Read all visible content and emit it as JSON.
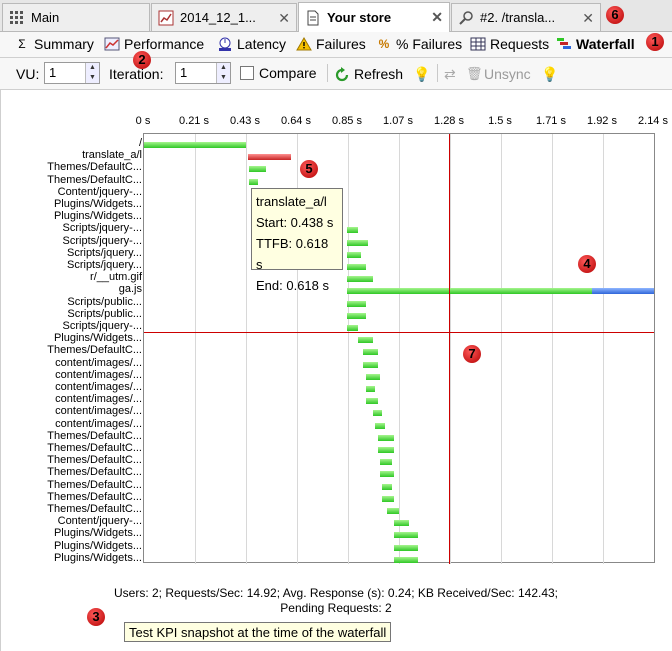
{
  "tabs": [
    {
      "label": "Main",
      "icon": "grid-icon"
    },
    {
      "label": "2014_12_1...",
      "icon": "report-icon"
    },
    {
      "label": "Your store",
      "icon": "document-icon"
    },
    {
      "label": "#2. /transla...",
      "icon": "search-icon"
    }
  ],
  "views": {
    "summary": "Summary",
    "performance": "Performance",
    "latency": "Latency",
    "failures": "Failures",
    "pct_failures": "% Failures",
    "requests": "Requests",
    "waterfall": "Waterfall"
  },
  "controls": {
    "vu_label": "VU:",
    "vu_value": "1",
    "iteration_label": "Iteration:",
    "iteration_value": "1",
    "compare_label": "Compare",
    "refresh_label": "Refresh",
    "unsync_label": "Unsync"
  },
  "chart_data": {
    "type": "waterfall",
    "x_ticks": [
      "0 s",
      "0.21 s",
      "0.43 s",
      "0.64 s",
      "0.85 s",
      "1.07 s",
      "1.28 s",
      "1.5 s",
      "1.71 s",
      "1.92 s",
      "2.14 s"
    ],
    "xlim": [
      0,
      2.14
    ],
    "sync_line_x": 1.28,
    "rows": [
      {
        "label": "/",
        "start": 0.0,
        "end": 0.43,
        "color": "green"
      },
      {
        "label": "translate_a/l",
        "start": 0.438,
        "end": 0.618,
        "color": "red"
      },
      {
        "label": "Themes/DefaultC...",
        "start": 0.44,
        "end": 0.51,
        "color": "green"
      },
      {
        "label": "Themes/DefaultC...",
        "start": 0.44,
        "end": 0.48,
        "color": "green"
      },
      {
        "label": "Content/jquery-...",
        "start": 0.45,
        "end": 0.47,
        "color": "green"
      },
      {
        "label": "Plugins/Widgets...",
        "start": 0.45,
        "end": 0.47,
        "color": "green"
      },
      {
        "label": "Plugins/Widgets...",
        "start": 0.45,
        "end": 0.47,
        "color": "green"
      },
      {
        "label": "Scripts/jquery-...",
        "start": 0.85,
        "end": 0.9,
        "color": "green"
      },
      {
        "label": "Scripts/jquery-...",
        "start": 0.85,
        "end": 0.94,
        "color": "green"
      },
      {
        "label": "Scripts/jquery...",
        "start": 0.85,
        "end": 0.91,
        "color": "green"
      },
      {
        "label": "Scripts/jquery...",
        "start": 0.85,
        "end": 0.93,
        "color": "green"
      },
      {
        "label": "r/__utm.gif",
        "start": 0.85,
        "end": 0.96,
        "color": "green"
      },
      {
        "label": "ga.js",
        "start": 0.85,
        "end": 1.88,
        "end2": 2.14,
        "color": "green-blue"
      },
      {
        "label": "Scripts/public...",
        "start": 0.85,
        "end": 0.93,
        "color": "green"
      },
      {
        "label": "Scripts/public...",
        "start": 0.85,
        "end": 0.93,
        "color": "green"
      },
      {
        "label": "Scripts/jquery-...",
        "start": 0.85,
        "end": 0.9,
        "color": "green"
      },
      {
        "label": "Plugins/Widgets...",
        "start": 0.9,
        "end": 0.96,
        "color": "green"
      },
      {
        "label": "Themes/DefaultC...",
        "start": 0.92,
        "end": 0.98,
        "color": "green"
      },
      {
        "label": "content/images/...",
        "start": 0.92,
        "end": 0.98,
        "color": "green"
      },
      {
        "label": "content/images/...",
        "start": 0.93,
        "end": 0.99,
        "color": "green"
      },
      {
        "label": "content/images/...",
        "start": 0.93,
        "end": 0.97,
        "color": "green"
      },
      {
        "label": "content/images/...",
        "start": 0.93,
        "end": 0.98,
        "color": "green"
      },
      {
        "label": "content/images/...",
        "start": 0.96,
        "end": 1.0,
        "color": "green"
      },
      {
        "label": "content/images/...",
        "start": 0.97,
        "end": 1.01,
        "color": "green"
      },
      {
        "label": "Themes/DefaultC...",
        "start": 0.98,
        "end": 1.05,
        "color": "green"
      },
      {
        "label": "Themes/DefaultC...",
        "start": 0.98,
        "end": 1.05,
        "color": "green"
      },
      {
        "label": "Themes/DefaultC...",
        "start": 0.99,
        "end": 1.04,
        "color": "green"
      },
      {
        "label": "Themes/DefaultC...",
        "start": 0.99,
        "end": 1.05,
        "color": "green"
      },
      {
        "label": "Themes/DefaultC...",
        "start": 1.0,
        "end": 1.04,
        "color": "green"
      },
      {
        "label": "Themes/DefaultC...",
        "start": 1.0,
        "end": 1.05,
        "color": "green"
      },
      {
        "label": "Themes/DefaultC...",
        "start": 1.02,
        "end": 1.07,
        "color": "green"
      },
      {
        "label": "Content/jquery-...",
        "start": 1.05,
        "end": 1.11,
        "color": "green"
      },
      {
        "label": "Plugins/Widgets...",
        "start": 1.05,
        "end": 1.15,
        "color": "green"
      },
      {
        "label": "Plugins/Widgets...",
        "start": 1.05,
        "end": 1.15,
        "color": "green"
      },
      {
        "label": "Plugins/Widgets...",
        "start": 1.05,
        "end": 1.15,
        "color": "green"
      }
    ],
    "highlight_row": 15
  },
  "tooltip": {
    "name": "translate_a/l",
    "start": "Start: 0.438 s",
    "ttfb": "TTFB: 0.618 s",
    "end": "End: 0.618 s"
  },
  "stats": {
    "line1": "Users: 2;   Requests/Sec: 14.92;   Avg. Response (s): 0.24;   KB Received/Sec: 142.43;",
    "line2": "Pending Requests: 2"
  },
  "kpi_note": "Test KPI snapshot at the time of the waterfall",
  "badges": [
    "1",
    "2",
    "3",
    "4",
    "5",
    "6",
    "7"
  ],
  "colors": {
    "accent_red": "#cc0000",
    "bar_green": "#2fc726",
    "bar_red": "#c62424",
    "bar_blue": "#2f66d9"
  }
}
